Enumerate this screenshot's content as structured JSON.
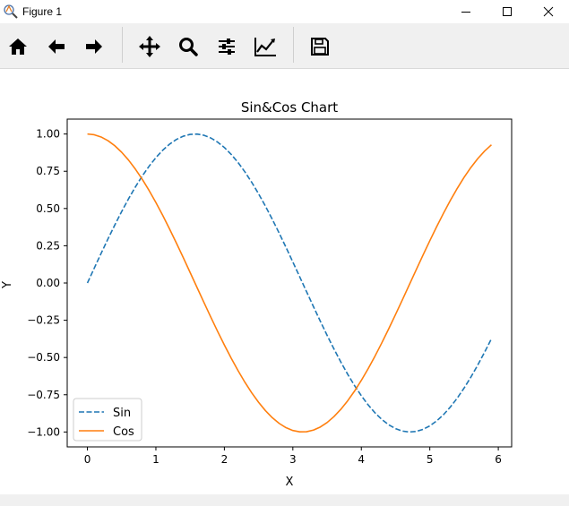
{
  "window": {
    "title": "Figure 1"
  },
  "toolbar": {
    "tools": [
      {
        "name": "home-icon",
        "label": "Home"
      },
      {
        "name": "back-arrow-icon",
        "label": "Back"
      },
      {
        "name": "forward-arrow-icon",
        "label": "Forward"
      },
      {
        "name": "pan-icon",
        "label": "Pan"
      },
      {
        "name": "zoom-icon",
        "label": "Zoom"
      },
      {
        "name": "subplots-config-icon",
        "label": "Configure subplots"
      },
      {
        "name": "edit-axis-icon",
        "label": "Edit axis"
      },
      {
        "name": "save-icon",
        "label": "Save"
      }
    ]
  },
  "chart_data": {
    "type": "line",
    "title": "Sin&Cos Chart",
    "xlabel": "X",
    "ylabel": "Y",
    "xlim": [
      -0.295,
      6.195
    ],
    "ylim": [
      -1.1,
      1.1
    ],
    "xticks": [
      "0",
      "1",
      "2",
      "3",
      "4",
      "5",
      "6"
    ],
    "yticks": [
      "1.00",
      "0.75",
      "0.50",
      "0.25",
      "0.00",
      "−0.25",
      "−0.50",
      "−0.75",
      "−1.00"
    ],
    "legend_position": "lower-left",
    "grid": false,
    "series": [
      {
        "name": "Sin",
        "style": "dashed",
        "color": "#1f77b4",
        "x": [
          0.0,
          0.1,
          0.2,
          0.3,
          0.4,
          0.5,
          0.6,
          0.7,
          0.8,
          0.9,
          1.0,
          1.1,
          1.2,
          1.3,
          1.4,
          1.5,
          1.6,
          1.7,
          1.8,
          1.9,
          2.0,
          2.1,
          2.2,
          2.3,
          2.4,
          2.5,
          2.6,
          2.7,
          2.8,
          2.9,
          3.0,
          3.1,
          3.2,
          3.3,
          3.4,
          3.5,
          3.6,
          3.7,
          3.8,
          3.9,
          4.0,
          4.1,
          4.2,
          4.3,
          4.4,
          4.5,
          4.6,
          4.7,
          4.8,
          4.9,
          5.0,
          5.1,
          5.2,
          5.3,
          5.4,
          5.5,
          5.6,
          5.7,
          5.8,
          5.9
        ],
        "y": [
          0.0,
          0.0998,
          0.1987,
          0.2955,
          0.3894,
          0.4794,
          0.5646,
          0.6442,
          0.7174,
          0.7833,
          0.8415,
          0.8912,
          0.932,
          0.9636,
          0.9854,
          0.9975,
          0.9996,
          0.9917,
          0.9738,
          0.9463,
          0.9093,
          0.8632,
          0.8085,
          0.7457,
          0.6755,
          0.5985,
          0.5155,
          0.4274,
          0.335,
          0.2392,
          0.1411,
          0.0416,
          -0.0584,
          -0.1577,
          -0.2555,
          -0.3508,
          -0.4425,
          -0.5298,
          -0.6119,
          -0.6878,
          -0.7568,
          -0.8183,
          -0.8716,
          -0.9162,
          -0.9516,
          -0.9775,
          -0.9937,
          -0.9999,
          -0.9962,
          -0.9825,
          -0.9589,
          -0.9258,
          -0.8835,
          -0.8323,
          -0.7728,
          -0.7055,
          -0.6313,
          -0.5507,
          -0.4646,
          -0.3739
        ]
      },
      {
        "name": "Cos",
        "style": "solid",
        "color": "#ff7f0e",
        "x": [
          0.0,
          0.1,
          0.2,
          0.3,
          0.4,
          0.5,
          0.6,
          0.7,
          0.8,
          0.9,
          1.0,
          1.1,
          1.2,
          1.3,
          1.4,
          1.5,
          1.6,
          1.7,
          1.8,
          1.9,
          2.0,
          2.1,
          2.2,
          2.3,
          2.4,
          2.5,
          2.6,
          2.7,
          2.8,
          2.9,
          3.0,
          3.1,
          3.2,
          3.3,
          3.4,
          3.5,
          3.6,
          3.7,
          3.8,
          3.9,
          4.0,
          4.1,
          4.2,
          4.3,
          4.4,
          4.5,
          4.6,
          4.7,
          4.8,
          4.9,
          5.0,
          5.1,
          5.2,
          5.3,
          5.4,
          5.5,
          5.6,
          5.7,
          5.8,
          5.9
        ],
        "y": [
          1.0,
          0.995,
          0.9801,
          0.9553,
          0.9211,
          0.8776,
          0.8253,
          0.7648,
          0.6967,
          0.6216,
          0.5403,
          0.4536,
          0.3624,
          0.2675,
          0.17,
          0.0707,
          -0.0292,
          -0.1288,
          -0.2272,
          -0.3233,
          -0.4161,
          -0.5048,
          -0.5885,
          -0.6663,
          -0.7374,
          -0.8011,
          -0.8569,
          -0.904,
          -0.9422,
          -0.971,
          -0.99,
          -0.9991,
          -0.9983,
          -0.9875,
          -0.9668,
          -0.9365,
          -0.8968,
          -0.8481,
          -0.791,
          -0.7259,
          -0.6536,
          -0.5748,
          -0.4903,
          -0.4008,
          -0.3073,
          -0.2108,
          -0.1122,
          -0.0124,
          0.0875,
          0.1865,
          0.2837,
          0.378,
          0.4685,
          0.5544,
          0.6347,
          0.7087,
          0.7756,
          0.8347,
          0.8855,
          0.9275
        ]
      }
    ]
  }
}
